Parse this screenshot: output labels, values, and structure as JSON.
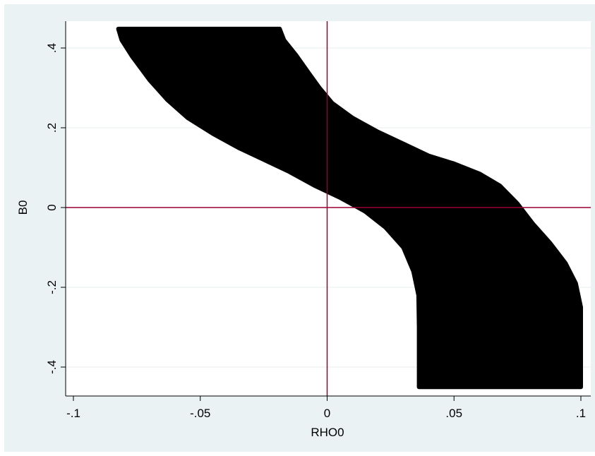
{
  "chart_data": {
    "type": "area",
    "xlabel": "RHO0",
    "ylabel": "B0",
    "xlim": [
      -0.1,
      0.1
    ],
    "ylim": [
      -0.45,
      0.45
    ],
    "x_ticks": [
      {
        "value": -0.1,
        "label": "-.1"
      },
      {
        "value": -0.05,
        "label": "-.05"
      },
      {
        "value": 0,
        "label": "0"
      },
      {
        "value": 0.05,
        "label": ".05"
      },
      {
        "value": 0.1,
        "label": ".1"
      }
    ],
    "y_ticks": [
      {
        "value": -0.4,
        "label": "-.4"
      },
      {
        "value": -0.2,
        "label": "-.2"
      },
      {
        "value": 0,
        "label": "0"
      },
      {
        "value": 0.2,
        "label": ".2"
      },
      {
        "value": 0.4,
        "label": ".4"
      }
    ],
    "grid": true,
    "reference_lines": {
      "x": 0,
      "y": 0,
      "color": "#990033"
    },
    "region": {
      "color": "#000000",
      "lower_boundary": [
        {
          "x": -0.0823,
          "y": 0.448
        },
        {
          "x": -0.081,
          "y": 0.42
        },
        {
          "x": -0.077,
          "y": 0.38
        },
        {
          "x": -0.07,
          "y": 0.32
        },
        {
          "x": -0.063,
          "y": 0.27
        },
        {
          "x": -0.055,
          "y": 0.225
        },
        {
          "x": -0.045,
          "y": 0.185
        },
        {
          "x": -0.035,
          "y": 0.15
        },
        {
          "x": -0.025,
          "y": 0.12
        },
        {
          "x": -0.015,
          "y": 0.09
        },
        {
          "x": -0.005,
          "y": 0.055
        },
        {
          "x": 0.005,
          "y": 0.025
        },
        {
          "x": 0.015,
          "y": -0.01
        },
        {
          "x": 0.023,
          "y": -0.05
        },
        {
          "x": 0.03,
          "y": -0.1
        },
        {
          "x": 0.034,
          "y": -0.16
        },
        {
          "x": 0.036,
          "y": -0.22
        },
        {
          "x": 0.0362,
          "y": -0.3
        },
        {
          "x": 0.0362,
          "y": -0.45
        }
      ],
      "upper_boundary": [
        {
          "x": -0.0187,
          "y": 0.448
        },
        {
          "x": -0.017,
          "y": 0.42
        },
        {
          "x": -0.012,
          "y": 0.38
        },
        {
          "x": -0.007,
          "y": 0.335
        },
        {
          "x": -0.003,
          "y": 0.3
        },
        {
          "x": 0.002,
          "y": 0.262
        },
        {
          "x": 0.01,
          "y": 0.225
        },
        {
          "x": 0.02,
          "y": 0.19
        },
        {
          "x": 0.03,
          "y": 0.16
        },
        {
          "x": 0.04,
          "y": 0.13
        },
        {
          "x": 0.05,
          "y": 0.11
        },
        {
          "x": 0.06,
          "y": 0.085
        },
        {
          "x": 0.068,
          "y": 0.055
        },
        {
          "x": 0.075,
          "y": 0.01
        },
        {
          "x": 0.081,
          "y": -0.04
        },
        {
          "x": 0.088,
          "y": -0.09
        },
        {
          "x": 0.094,
          "y": -0.14
        },
        {
          "x": 0.098,
          "y": -0.19
        },
        {
          "x": 0.1,
          "y": -0.25
        },
        {
          "x": 0.1,
          "y": -0.45
        }
      ]
    }
  }
}
